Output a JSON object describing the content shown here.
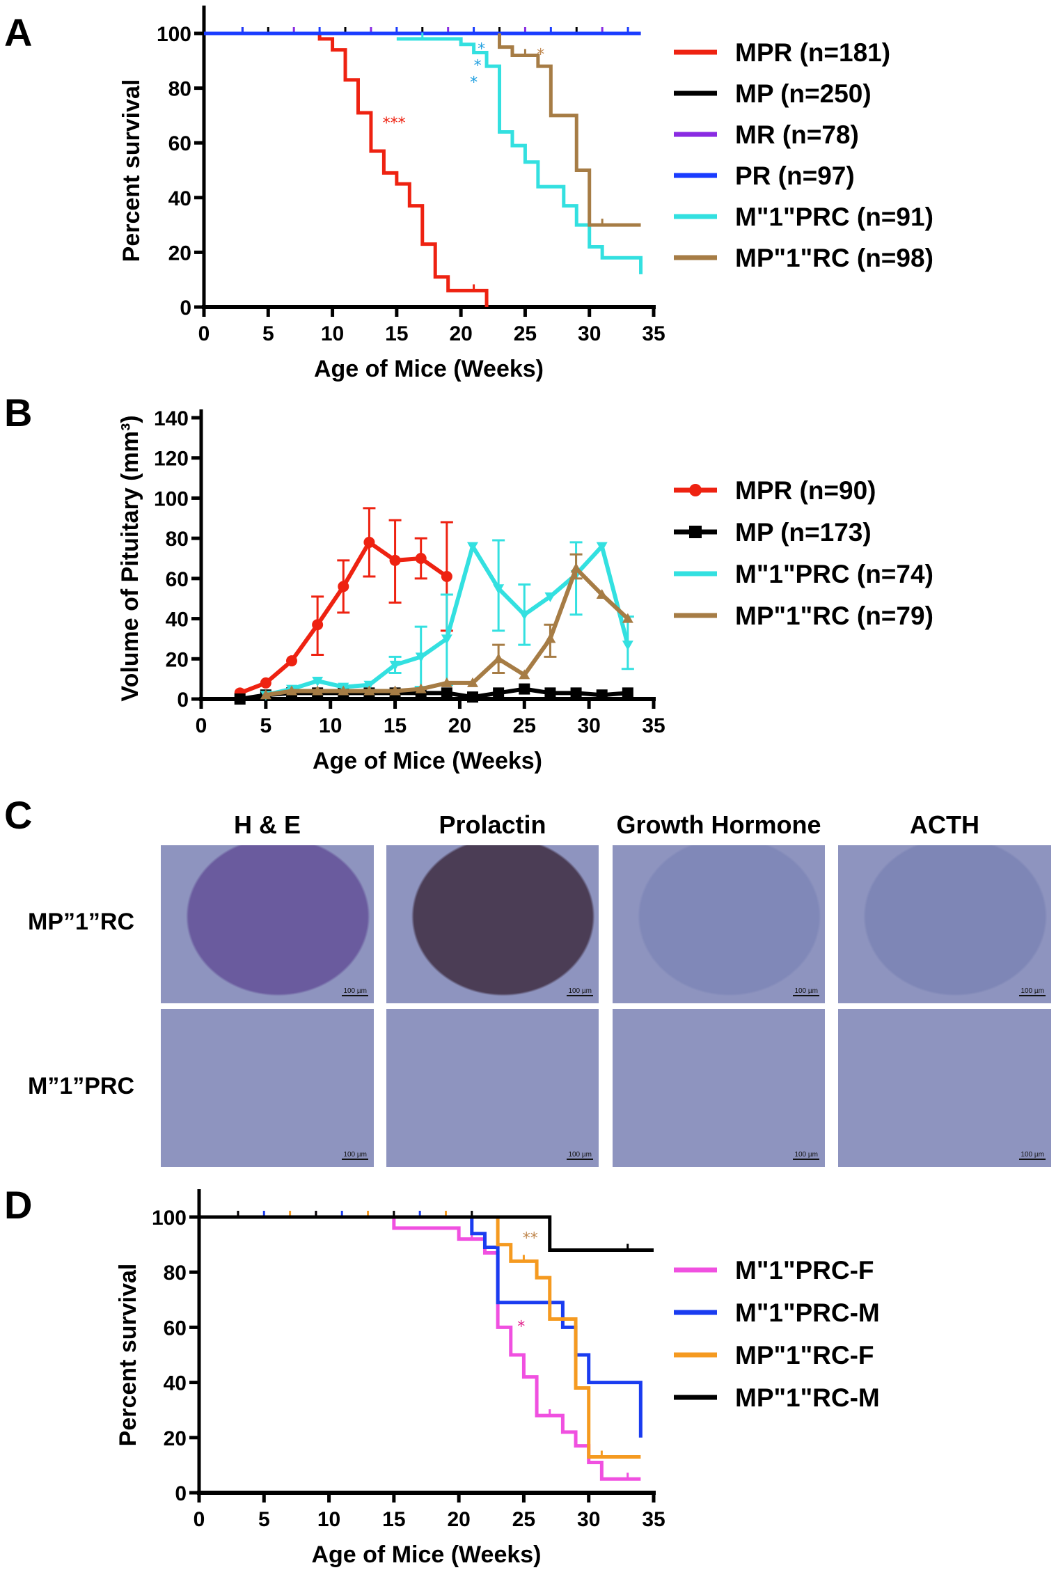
{
  "panel_letters": [
    "A",
    "B",
    "C",
    "D"
  ],
  "chart_data": [
    {
      "id": "A",
      "type": "line",
      "subtype": "kaplan-meier step",
      "xlabel": "Age of Mice (Weeks)",
      "ylabel": "Percent survival",
      "xlim": [
        0,
        35
      ],
      "ylim": [
        0,
        100
      ],
      "xticks": [
        0,
        5,
        10,
        15,
        20,
        25,
        30,
        35
      ],
      "yticks": [
        0,
        20,
        40,
        60,
        80,
        100
      ],
      "grid": false,
      "legend_position": "right",
      "series": [
        {
          "name": "MPR (n=181)",
          "color": "#ee2211",
          "steps": [
            [
              0,
              100
            ],
            [
              9,
              98
            ],
            [
              10,
              94
            ],
            [
              11,
              83
            ],
            [
              12,
              71
            ],
            [
              13,
              57
            ],
            [
              14,
              49
            ],
            [
              15,
              45
            ],
            [
              16,
              37
            ],
            [
              17,
              23
            ],
            [
              18,
              11
            ],
            [
              19,
              6
            ],
            [
              22,
              0
            ]
          ],
          "end": 22
        },
        {
          "name": "MP (n=250)",
          "color": "#000000",
          "steps": [
            [
              0,
              100
            ]
          ],
          "end": 34
        },
        {
          "name": "MR (n=78)",
          "color": "#8a2be2",
          "steps": [
            [
              0,
              100
            ]
          ],
          "end": 34
        },
        {
          "name": "PR (n=97)",
          "color": "#1a3cff",
          "steps": [
            [
              0,
              100
            ]
          ],
          "end": 34
        },
        {
          "name": "M\"1\"PRC (n=91)",
          "color": "#33e0e0",
          "steps": [
            [
              15,
              98
            ],
            [
              20,
              96
            ],
            [
              21,
              93
            ],
            [
              22,
              88
            ],
            [
              23,
              64
            ],
            [
              24,
              59
            ],
            [
              25,
              53
            ],
            [
              26,
              44
            ],
            [
              28,
              37
            ],
            [
              29,
              30
            ],
            [
              30,
              22
            ],
            [
              31,
              18
            ],
            [
              34,
              12
            ]
          ],
          "end": 34
        },
        {
          "name": "MP\"1\"RC (n=98)",
          "color": "#a67c45",
          "steps": [
            [
              23,
              100
            ],
            [
              23,
              95
            ],
            [
              24,
              92
            ],
            [
              26,
              88
            ],
            [
              27,
              70
            ],
            [
              29,
              50
            ],
            [
              30,
              30
            ]
          ],
          "end": 34
        }
      ],
      "annotations": [
        {
          "text": "***",
          "x": 14.8,
          "y": 68,
          "color": "#ee2211"
        },
        {
          "text": "*",
          "x": 21.6,
          "y": 95,
          "color": "#22a0e0"
        },
        {
          "text": "*",
          "x": 21.3,
          "y": 91,
          "color": "#22a0e0"
        },
        {
          "text": "*",
          "x": 21.0,
          "y": 87,
          "color": "#22a0e0"
        },
        {
          "text": "*",
          "x": 26.2,
          "y": 93,
          "color": "#c08850"
        }
      ]
    },
    {
      "id": "B",
      "type": "line",
      "xlabel": "Age of Mice (Weeks)",
      "ylabel": "Volume of Pituitary (mm³)",
      "xlim": [
        0,
        35
      ],
      "ylim": [
        0,
        140
      ],
      "xticks": [
        0,
        5,
        10,
        15,
        20,
        25,
        30,
        35
      ],
      "yticks": [
        0,
        20,
        40,
        60,
        80,
        100,
        120,
        140
      ],
      "grid": false,
      "legend_position": "right",
      "series": [
        {
          "name": "MPR (n=90)",
          "color": "#ee2211",
          "marker": "circle",
          "x": [
            3,
            5,
            7,
            9,
            11,
            13,
            15,
            17,
            19
          ],
          "y": [
            3,
            8,
            19,
            37,
            56,
            78,
            69,
            70,
            61
          ],
          "err_low": [
            null,
            null,
            null,
            22,
            43,
            61,
            48,
            60,
            34
          ],
          "err_high": [
            null,
            null,
            null,
            51,
            69,
            95,
            89,
            80,
            88
          ]
        },
        {
          "name": "MP (n=173)",
          "color": "#000000",
          "marker": "square",
          "x": [
            3,
            5,
            7,
            9,
            11,
            13,
            15,
            17,
            19,
            21,
            23,
            25,
            27,
            29,
            31,
            33
          ],
          "y": [
            0,
            2,
            3,
            3,
            3,
            3,
            3,
            3,
            3,
            1,
            3,
            5,
            3,
            3,
            2,
            3
          ]
        },
        {
          "name": "M\"1\"PRC (n=74)",
          "color": "#33e0e0",
          "marker": "triangle-down",
          "x": [
            5,
            7,
            9,
            11,
            13,
            15,
            17,
            19,
            21,
            23,
            25,
            27,
            29,
            31,
            33
          ],
          "y": [
            2,
            5,
            9,
            6,
            7,
            17,
            21,
            30,
            76,
            55,
            42,
            51,
            62,
            76,
            27
          ],
          "err_low": [
            null,
            null,
            null,
            null,
            null,
            13,
            6,
            7,
            null,
            34,
            27,
            null,
            42,
            null,
            15
          ],
          "err_high": [
            null,
            null,
            null,
            null,
            null,
            21,
            36,
            52,
            null,
            79,
            57,
            null,
            78,
            null,
            41
          ]
        },
        {
          "name": "MP\"1\"RC (n=79)",
          "color": "#a67c45",
          "marker": "triangle",
          "x": [
            5,
            7,
            9,
            11,
            13,
            15,
            17,
            19,
            21,
            23,
            25,
            27,
            29,
            31,
            33
          ],
          "y": [
            2,
            4,
            4,
            4,
            4,
            4,
            5,
            8,
            8,
            20,
            12,
            30,
            65,
            52,
            40
          ],
          "err_low": [
            null,
            null,
            null,
            null,
            null,
            null,
            null,
            null,
            null,
            13,
            null,
            21,
            60,
            null,
            null
          ],
          "err_high": [
            null,
            null,
            null,
            null,
            null,
            null,
            null,
            null,
            null,
            27,
            null,
            37,
            72,
            null,
            null
          ]
        }
      ]
    },
    {
      "id": "D",
      "type": "line",
      "subtype": "kaplan-meier step",
      "xlabel": "Age of Mice (Weeks)",
      "ylabel": "Percent survival",
      "xlim": [
        0,
        35
      ],
      "ylim": [
        0,
        100
      ],
      "xticks": [
        0,
        5,
        10,
        15,
        20,
        25,
        30,
        35
      ],
      "yticks": [
        0,
        20,
        40,
        60,
        80,
        100
      ],
      "grid": false,
      "legend_position": "right",
      "series": [
        {
          "name": "M\"1\"PRC-F",
          "color": "#f050e0",
          "steps": [
            [
              0,
              100
            ],
            [
              15,
              96
            ],
            [
              20,
              92
            ],
            [
              22,
              87
            ],
            [
              23,
              60
            ],
            [
              24,
              50
            ],
            [
              25,
              42
            ],
            [
              26,
              28
            ],
            [
              28,
              22
            ],
            [
              29,
              17
            ],
            [
              30,
              11
            ],
            [
              31,
              5
            ]
          ],
          "end": 34
        },
        {
          "name": "M\"1\"PRC-M",
          "color": "#1a3cf0",
          "steps": [
            [
              0,
              100
            ],
            [
              21,
              94
            ],
            [
              22,
              89
            ],
            [
              23,
              69
            ],
            [
              28,
              60
            ],
            [
              29,
              50
            ],
            [
              30,
              40
            ],
            [
              34,
              20
            ]
          ],
          "end": 34
        },
        {
          "name": "MP\"1\"RC-F",
          "color": "#f59a20",
          "steps": [
            [
              0,
              100
            ],
            [
              23,
              90
            ],
            [
              24,
              84
            ],
            [
              26,
              78
            ],
            [
              27,
              63
            ],
            [
              29,
              38
            ],
            [
              30,
              13
            ]
          ],
          "end": 34
        },
        {
          "name": "MP\"1\"RC-M",
          "color": "#000000",
          "steps": [
            [
              0,
              100
            ],
            [
              27,
              88
            ]
          ],
          "end": 35
        }
      ],
      "annotations": [
        {
          "text": "**",
          "x": 25.5,
          "y": 93,
          "color": "#c08850"
        },
        {
          "text": "*",
          "x": 24.8,
          "y": 61,
          "color": "#e0208a"
        }
      ]
    }
  ],
  "panel_c": {
    "columns": [
      "H & E",
      "Prolactin",
      "Growth Hormone",
      "ACTH"
    ],
    "rows": [
      "MP”1”RC",
      "M”1”PRC"
    ],
    "scale_bar": "100 µm",
    "stain_colors": {
      "he_top": "#6a5b9e",
      "he_bottom": "#b2507e",
      "prolactin": "#4b3d55",
      "gh": "#8088b8",
      "acth": "#7e86b6",
      "background": "#8e94bf"
    }
  }
}
